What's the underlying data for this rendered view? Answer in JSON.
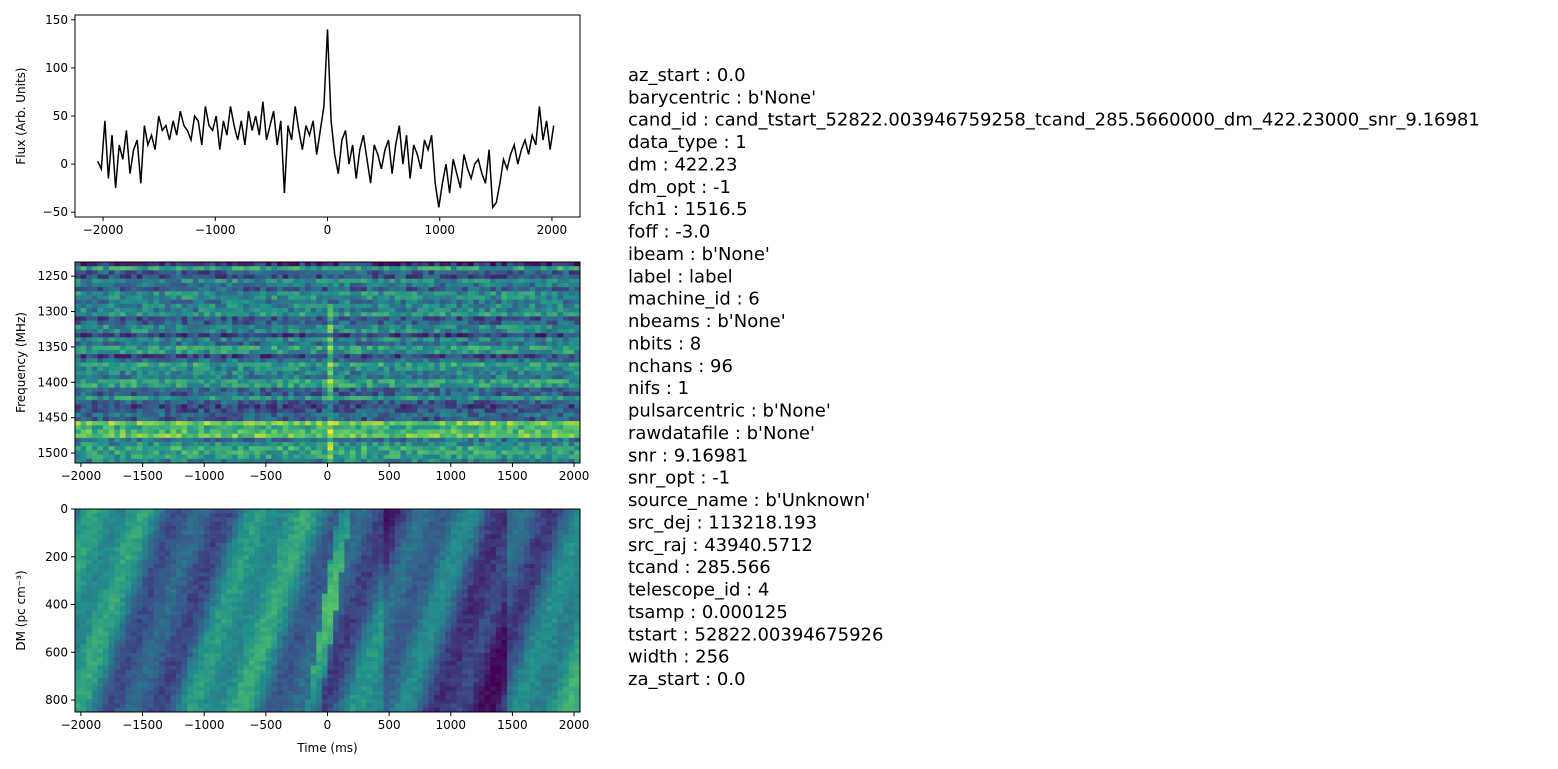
{
  "chart_data": [
    {
      "type": "line",
      "ylabel": "Flux (Arb. Units)",
      "color": "#000000",
      "x": [
        -2048,
        -2016,
        -1984,
        -1952,
        -1920,
        -1888,
        -1856,
        -1824,
        -1792,
        -1760,
        -1728,
        -1696,
        -1664,
        -1632,
        -1600,
        -1568,
        -1536,
        -1504,
        -1472,
        -1440,
        -1408,
        -1376,
        -1344,
        -1312,
        -1280,
        -1248,
        -1216,
        -1184,
        -1152,
        -1120,
        -1088,
        -1056,
        -1024,
        -992,
        -960,
        -928,
        -896,
        -864,
        -832,
        -800,
        -768,
        -736,
        -704,
        -672,
        -640,
        -608,
        -576,
        -544,
        -512,
        -480,
        -448,
        -416,
        -384,
        -352,
        -320,
        -288,
        -256,
        -224,
        -192,
        -160,
        -128,
        -96,
        -64,
        -32,
        0,
        32,
        64,
        96,
        128,
        160,
        192,
        224,
        256,
        288,
        320,
        352,
        384,
        416,
        448,
        480,
        512,
        544,
        576,
        608,
        640,
        672,
        704,
        736,
        768,
        800,
        832,
        864,
        896,
        928,
        960,
        992,
        1024,
        1056,
        1088,
        1120,
        1152,
        1184,
        1216,
        1248,
        1280,
        1312,
        1344,
        1376,
        1408,
        1440,
        1472,
        1504,
        1536,
        1568,
        1600,
        1632,
        1664,
        1696,
        1728,
        1760,
        1792,
        1824,
        1856,
        1888,
        1920,
        1952,
        1984,
        2016
      ],
      "values": [
        3,
        -5,
        45,
        -15,
        30,
        -25,
        20,
        5,
        35,
        -10,
        15,
        25,
        -20,
        40,
        20,
        30,
        15,
        50,
        35,
        40,
        25,
        45,
        30,
        55,
        40,
        35,
        25,
        50,
        45,
        20,
        60,
        40,
        35,
        50,
        15,
        45,
        30,
        60,
        40,
        25,
        45,
        20,
        55,
        35,
        50,
        30,
        65,
        25,
        40,
        55,
        20,
        45,
        -30,
        40,
        25,
        60,
        35,
        15,
        40,
        30,
        45,
        10,
        35,
        60,
        140,
        45,
        10,
        -10,
        25,
        35,
        0,
        20,
        -15,
        15,
        30,
        5,
        -20,
        20,
        10,
        -5,
        15,
        25,
        -10,
        20,
        40,
        0,
        30,
        -15,
        20,
        10,
        -5,
        25,
        15,
        30,
        -20,
        -45,
        -20,
        0,
        -30,
        5,
        -10,
        -25,
        10,
        -5,
        -15,
        0,
        5,
        -10,
        -20,
        15,
        -45,
        -40,
        -20,
        5,
        -5,
        10,
        20,
        0,
        15,
        25,
        10,
        30,
        20,
        60,
        25,
        45,
        15,
        40
      ],
      "xlim": [
        -2250,
        2250
      ],
      "xticks": [
        {
          "value": -2000,
          "label": "−2000"
        },
        {
          "value": -1000,
          "label": "−1000"
        },
        0,
        1000,
        2000
      ],
      "ylim": [
        -55,
        155
      ],
      "yticks": [
        {
          "value": -50,
          "label": "−50"
        },
        0,
        50,
        100,
        150
      ]
    },
    {
      "type": "heatmap",
      "ylabel": "Frequency (MHz)",
      "colormap": "viridis",
      "pattern": "frequency",
      "xlim": [
        -2048,
        2048
      ],
      "xticks": [
        {
          "value": -2000,
          "label": "−2000"
        },
        {
          "value": -1500,
          "label": "−1500"
        },
        {
          "value": -1000,
          "label": "−1000"
        },
        {
          "value": -500,
          "label": "−500"
        },
        0,
        500,
        1000,
        1500,
        2000
      ],
      "ylim": [
        1514,
        1230
      ],
      "yticks": [
        1250,
        1300,
        1350,
        1400,
        1450,
        1500
      ]
    },
    {
      "type": "heatmap",
      "ylabel": "DM (pc cm⁻³)",
      "xlabel": "Time (ms)",
      "colormap": "viridis",
      "pattern": "dm",
      "xlim": [
        -2048,
        2048
      ],
      "xticks": [
        {
          "value": -2000,
          "label": "−2000"
        },
        {
          "value": -1500,
          "label": "−1500"
        },
        {
          "value": -1000,
          "label": "−1000"
        },
        {
          "value": -500,
          "label": "−500"
        },
        0,
        500,
        1000,
        1500,
        2000
      ],
      "ylim": [
        850,
        0
      ],
      "yticks": [
        0,
        200,
        400,
        600,
        800
      ]
    }
  ],
  "info": [
    "az_start : 0.0",
    "barycentric : b'None'",
    "cand_id : cand_tstart_52822.003946759258_tcand_285.5660000_dm_422.23000_snr_9.16981",
    "data_type : 1",
    "dm : 422.23",
    "dm_opt : -1",
    "fch1 : 1516.5",
    "foff : -3.0",
    "ibeam : b'None'",
    "label : label",
    "machine_id : 6",
    "nbeams : b'None'",
    "nbits : 8",
    "nchans : 96",
    "nifs : 1",
    "pulsarcentric : b'None'",
    "rawdatafile : b'None'",
    "snr : 9.16981",
    "snr_opt : -1",
    "source_name : b'Unknown'",
    "src_dej : 113218.193",
    "src_raj : 43940.5712",
    "tcand : 285.566",
    "telescope_id : 4",
    "tsamp : 0.000125",
    "tstart : 52822.00394675926",
    "width : 256",
    "za_start : 0.0"
  ]
}
